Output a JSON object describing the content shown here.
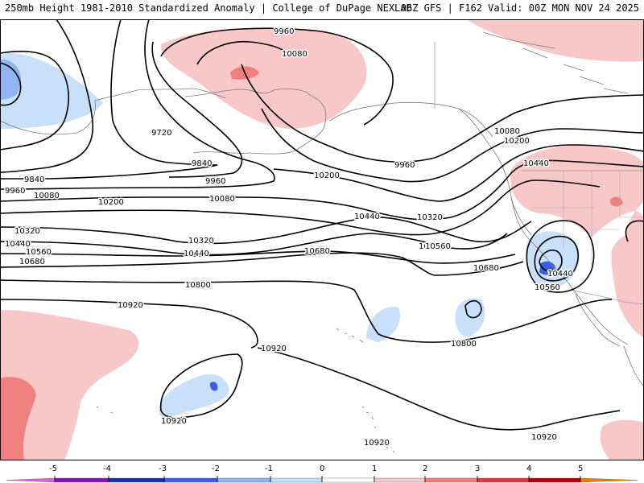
{
  "header": {
    "title_left": "250mb Height 1981-2010 Standardized Anomaly | College of DuPage NEXLAB",
    "title_right": "06Z GFS | F162 Valid: 00Z MON NOV 24 2025"
  },
  "contour_labels": {
    "c1": "9960",
    "c2": "10080",
    "c3": "9720",
    "c4": "9840",
    "c5": "9960",
    "c6": "10080",
    "c7": "9840",
    "c8": "9960",
    "c9": "10080",
    "c10": "10200",
    "c11": "10320",
    "c12": "10440",
    "c13": "10560",
    "c14": "10680",
    "c15": "10200",
    "c16": "10320",
    "c17": "10440",
    "c18": "10560",
    "c19": "10680",
    "c20": "10800",
    "c21": "10920",
    "c22": "9960",
    "c23": "10080",
    "c24": "10200",
    "c25": "10440",
    "c26": "10320",
    "c27": "10440",
    "c28": "10560",
    "c29": "10680",
    "c30": "10440",
    "c31": "10560",
    "c32": "10800",
    "c33": "10920",
    "c34": "10920",
    "c35": "10920",
    "c36": "10920"
  },
  "colorbar": {
    "ticks": [
      "-5",
      "-4",
      "-3",
      "-2",
      "-1",
      "0",
      "1",
      "2",
      "3",
      "4",
      "5"
    ],
    "neg_colors": [
      "#e060e0",
      "#8a10b0",
      "#1a2ea0",
      "#3a5fe0",
      "#8fb4f0",
      "#c8e0fa",
      "#ffffff"
    ],
    "pos_colors": [
      "#ffffff",
      "#f8c8c8",
      "#f08080",
      "#e03a3a",
      "#b00000",
      "#f08000",
      "#ffc000"
    ]
  },
  "anomaly_colors": {
    "weak_neg": "#c8e0fa",
    "mod_neg": "#8fb4f0",
    "strong_neg": "#3a5fe0",
    "weak_pos": "#f8c8c8",
    "mod_pos": "#f08080"
  }
}
